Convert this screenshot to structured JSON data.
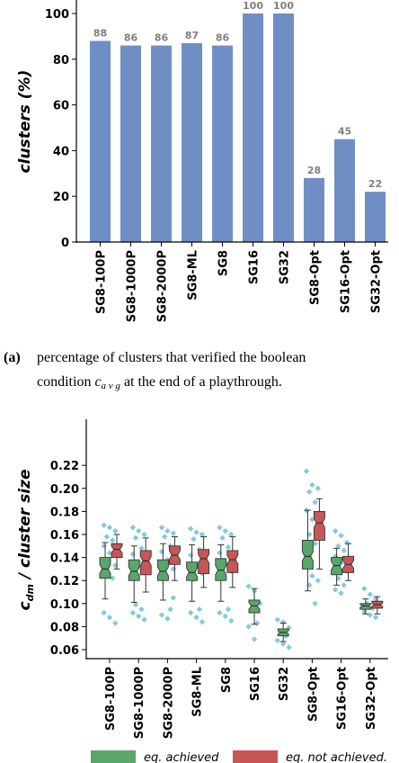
{
  "chart_data": [
    {
      "type": "bar",
      "ylabel": "clusters (%)",
      "ylim": [
        0,
        105
      ],
      "yticks": [
        0,
        20,
        40,
        60,
        80,
        100
      ],
      "categories": [
        "SG8-100P",
        "SG8-1000P",
        "SG8-2000P",
        "SG8-ML",
        "SG8",
        "SG16",
        "SG32",
        "SG8-Opt",
        "SG16-Opt",
        "SG32-Opt"
      ],
      "values": [
        88,
        86,
        86,
        87,
        86,
        100,
        100,
        28,
        45,
        22
      ],
      "data_labels": [
        "88",
        "86",
        "86",
        "87",
        "86",
        "100",
        "100",
        "28",
        "45",
        "22"
      ],
      "bar_color": "#6f8fc4",
      "label_color": "#7f7f7f",
      "grid": false
    },
    {
      "type": "box",
      "ylabel_main": "c",
      "ylabel_sub": "dm",
      "ylabel_rest": " / cluster size",
      "ylim": [
        0.055,
        0.225
      ],
      "yticks": [
        "0.06",
        "0.08",
        "0.10",
        "0.12",
        "0.14",
        "0.16",
        "0.18",
        "0.20",
        "0.22"
      ],
      "ytick_values": [
        0.06,
        0.08,
        0.1,
        0.12,
        0.14,
        0.16,
        0.18,
        0.2,
        0.22
      ],
      "categories": [
        "SG8-100P",
        "SG8-1000P",
        "SG8-2000P",
        "SG8-ML",
        "SG8",
        "SG16",
        "SG32",
        "SG8-Opt",
        "SG16-Opt",
        "SG32-Opt"
      ],
      "colors": {
        "achieved": "#5aa66a",
        "not_achieved": "#c85656",
        "points": "#6fc0d8"
      },
      "legend": {
        "achieved": "eq. achieved",
        "not_achieved": "eq. not achieved."
      },
      "groups": [
        {
          "achieved": {
            "q1": 0.122,
            "median": 0.13,
            "q3": 0.14,
            "lo": 0.104,
            "hi": 0.153
          },
          "not_achieved": {
            "q1": 0.14,
            "median": 0.147,
            "q3": 0.152,
            "lo": 0.13,
            "hi": 0.16
          },
          "points": [
            0.168,
            0.166,
            0.163,
            0.158,
            0.155,
            0.15,
            0.144,
            0.133,
            0.125,
            0.122,
            0.092,
            0.088,
            0.083
          ]
        },
        {
          "achieved": {
            "q1": 0.12,
            "median": 0.128,
            "q3": 0.138,
            "lo": 0.101,
            "hi": 0.15
          },
          "not_achieved": {
            "q1": 0.125,
            "median": 0.137,
            "q3": 0.146,
            "lo": 0.11,
            "hi": 0.157
          },
          "points": [
            0.166,
            0.163,
            0.16,
            0.157,
            0.148,
            0.143,
            0.136,
            0.128,
            0.122,
            0.095,
            0.092,
            0.089,
            0.086,
            0.099
          ]
        },
        {
          "achieved": {
            "q1": 0.12,
            "median": 0.128,
            "q3": 0.138,
            "lo": 0.103,
            "hi": 0.152
          },
          "not_achieved": {
            "q1": 0.134,
            "median": 0.142,
            "q3": 0.15,
            "lo": 0.12,
            "hi": 0.158
          },
          "points": [
            0.166,
            0.163,
            0.161,
            0.158,
            0.15,
            0.145,
            0.138,
            0.13,
            0.123,
            0.095,
            0.09,
            0.087,
            0.105
          ]
        },
        {
          "achieved": {
            "q1": 0.12,
            "median": 0.127,
            "q3": 0.136,
            "lo": 0.102,
            "hi": 0.151
          },
          "not_achieved": {
            "q1": 0.126,
            "median": 0.139,
            "q3": 0.147,
            "lo": 0.114,
            "hi": 0.158
          },
          "points": [
            0.165,
            0.162,
            0.16,
            0.156,
            0.147,
            0.142,
            0.133,
            0.126,
            0.121,
            0.095,
            0.092,
            0.088,
            0.084
          ]
        },
        {
          "achieved": {
            "q1": 0.12,
            "median": 0.129,
            "q3": 0.139,
            "lo": 0.102,
            "hi": 0.151
          },
          "not_achieved": {
            "q1": 0.127,
            "median": 0.138,
            "q3": 0.146,
            "lo": 0.114,
            "hi": 0.158
          },
          "points": [
            0.166,
            0.163,
            0.16,
            0.157,
            0.149,
            0.144,
            0.135,
            0.128,
            0.122,
            0.095,
            0.092,
            0.089,
            0.085
          ]
        },
        {
          "achieved": {
            "q1": 0.092,
            "median": 0.098,
            "q3": 0.103,
            "lo": 0.082,
            "hi": 0.113
          },
          "not_achieved": null,
          "points": [
            0.115,
            0.111,
            0.1,
            0.094,
            0.083,
            0.08,
            0.069
          ]
        },
        {
          "achieved": {
            "q1": 0.072,
            "median": 0.075,
            "q3": 0.078,
            "lo": 0.067,
            "hi": 0.083
          },
          "not_achieved": null,
          "points": [
            0.086,
            0.084,
            0.079,
            0.076,
            0.072,
            0.068,
            0.065,
            0.062
          ]
        },
        {
          "achieved": {
            "q1": 0.13,
            "median": 0.141,
            "q3": 0.155,
            "lo": 0.111,
            "hi": 0.181
          },
          "not_achieved": {
            "q1": 0.155,
            "median": 0.17,
            "q3": 0.18,
            "lo": 0.13,
            "hi": 0.191
          },
          "points": [
            0.215,
            0.203,
            0.2,
            0.197,
            0.188,
            0.181,
            0.173,
            0.166,
            0.16,
            0.152,
            0.142,
            0.124,
            0.12,
            0.116,
            0.1
          ]
        },
        {
          "achieved": {
            "q1": 0.125,
            "median": 0.133,
            "q3": 0.14,
            "lo": 0.116,
            "hi": 0.148
          },
          "not_achieved": {
            "q1": 0.127,
            "median": 0.134,
            "q3": 0.141,
            "lo": 0.12,
            "hi": 0.152
          },
          "points": [
            0.163,
            0.159,
            0.153,
            0.15,
            0.146,
            0.141,
            0.135,
            0.128,
            0.122,
            0.116,
            0.112,
            0.109
          ]
        },
        {
          "achieved": {
            "q1": 0.095,
            "median": 0.098,
            "q3": 0.1,
            "lo": 0.091,
            "hi": 0.104
          },
          "not_achieved": {
            "q1": 0.096,
            "median": 0.099,
            "q3": 0.102,
            "lo": 0.091,
            "hi": 0.106
          },
          "points": [
            0.113,
            0.108,
            0.104,
            0.1,
            0.096,
            0.093,
            0.09,
            0.088
          ]
        }
      ]
    }
  ],
  "caption": {
    "tag": "(a)",
    "line1": "percentage of clusters that verified the boolean",
    "line2_pre": "condition ",
    "line2_math_main": "c",
    "line2_math_sub": "a v g",
    "line2_post": " at the end of a playthrough."
  }
}
